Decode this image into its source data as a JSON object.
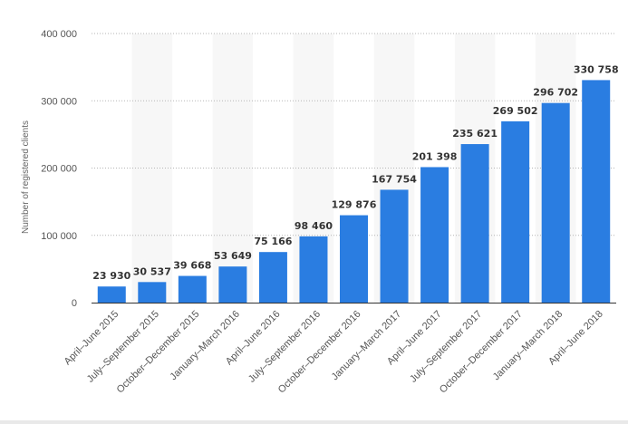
{
  "chart_data": {
    "type": "bar",
    "title": "",
    "xlabel": "",
    "ylabel": "Number of registered clients",
    "ylim": [
      0,
      400000
    ],
    "y_ticks": [
      0,
      100000,
      200000,
      300000,
      400000
    ],
    "y_tick_labels": [
      "0",
      "100 000",
      "200 000",
      "300 000",
      "400 000"
    ],
    "grid": "horizontal dotted",
    "bar_color": "#2a7de1",
    "categories": [
      "April–June 2015",
      "July–September 2015",
      "October–December 2015",
      "January–March 2016",
      "April–June 2016",
      "July–September 2016",
      "October–December 2016",
      "January–March 2017",
      "April–June 2017",
      "July–September 2017",
      "October–December 2017",
      "January–March 2018",
      "April–June 2018"
    ],
    "values": [
      23930,
      30537,
      39668,
      53649,
      75166,
      98460,
      129876,
      167754,
      201398,
      235621,
      269502,
      296702,
      330758
    ],
    "value_labels": [
      "23 930",
      "30 537",
      "39 668",
      "53 649",
      "75 166",
      "98 460",
      "129 876",
      "167 754",
      "201 398",
      "235 621",
      "269 502",
      "296 702",
      "330 758"
    ]
  }
}
